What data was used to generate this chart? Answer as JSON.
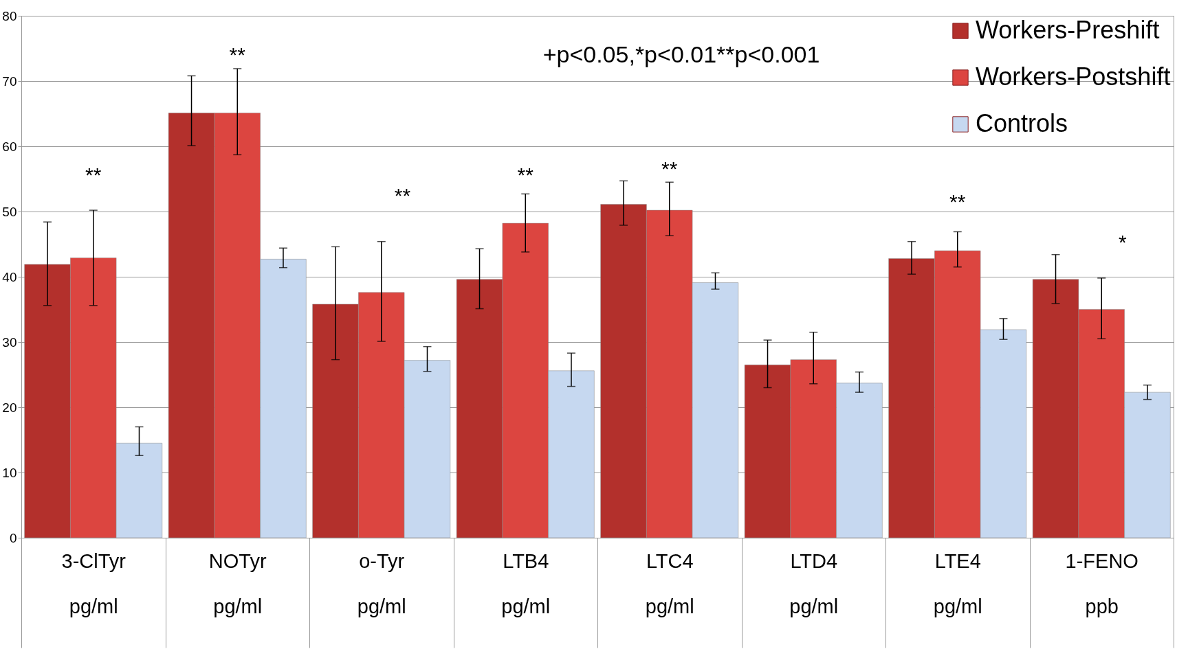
{
  "chart_data": {
    "type": "bar",
    "categories": [
      "3-ClTyr\npg/ml",
      "NOTyr\npg/ml",
      "o-Tyr\npg/ml",
      "LTB4\npg/ml",
      "LTC4\npg/ml",
      "LTD4\npg/ml",
      "LTE4\npg/ml",
      "1-FENO\nppb"
    ],
    "series": [
      {
        "name": "Workers-Preshift",
        "color": "#b3302c",
        "values": [
          41.9,
          65.1,
          35.8,
          39.6,
          51.1,
          26.5,
          42.8,
          39.6
        ],
        "errors": [
          [
            35.6,
            48.4
          ],
          [
            60.1,
            70.8
          ],
          [
            27.3,
            44.6
          ],
          [
            35.1,
            44.3
          ],
          [
            47.9,
            54.7
          ],
          [
            23.0,
            30.3
          ],
          [
            40.4,
            45.4
          ],
          [
            35.9,
            43.4
          ]
        ]
      },
      {
        "name": "Workers-Postshift",
        "color": "#dc4540",
        "values": [
          42.9,
          65.1,
          37.6,
          48.2,
          50.2,
          27.3,
          44.0,
          35.0
        ],
        "errors": [
          [
            35.6,
            50.2
          ],
          [
            58.7,
            71.9
          ],
          [
            30.1,
            45.4
          ],
          [
            43.8,
            52.7
          ],
          [
            46.3,
            54.5
          ],
          [
            23.6,
            31.5
          ],
          [
            41.5,
            46.9
          ],
          [
            30.5,
            39.8
          ]
        ]
      },
      {
        "name": "Controls",
        "color": "#c6d8f0",
        "values": [
          14.5,
          42.7,
          27.2,
          25.6,
          39.1,
          23.7,
          31.9,
          22.3
        ],
        "errors": [
          [
            12.6,
            17.0
          ],
          [
            41.4,
            44.4
          ],
          [
            25.5,
            29.3
          ],
          [
            23.2,
            28.3
          ],
          [
            38.1,
            40.6
          ],
          [
            22.3,
            25.4
          ],
          [
            30.4,
            33.6
          ],
          [
            21.2,
            23.4
          ]
        ]
      }
    ],
    "ylim": [
      0,
      80
    ],
    "yticks": [
      0,
      10,
      20,
      30,
      40,
      50,
      60,
      70,
      80
    ],
    "grid": "y",
    "legend": "top right",
    "annotations": [
      "+p<0.05,*p<0.01**p<0.001",
      "**",
      "**",
      "**",
      "**",
      "**",
      "**",
      "*"
    ]
  }
}
